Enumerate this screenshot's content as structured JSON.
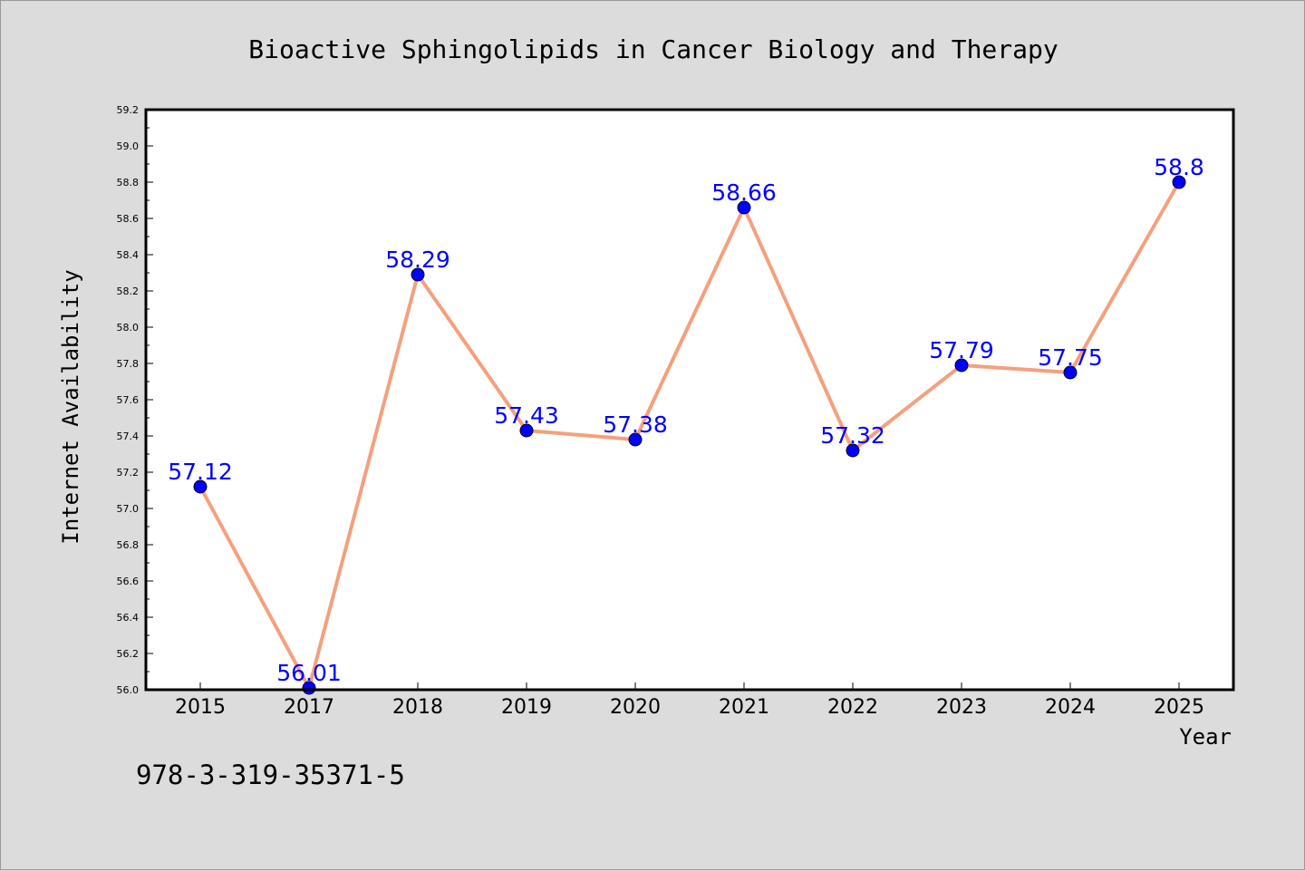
{
  "colors": {
    "background": "#dcdcdc",
    "plot_background": "#ffffff",
    "line": "#f4a07e",
    "marker": "#0000ff",
    "data_label": "#0000ff"
  },
  "chart_data": {
    "type": "line",
    "title": "Bioactive Sphingolipids in Cancer Biology and Therapy",
    "xlabel": "Year",
    "ylabel": "Internet Availability",
    "categories": [
      "2015",
      "2017",
      "2018",
      "2019",
      "2020",
      "2021",
      "2022",
      "2023",
      "2024",
      "2025"
    ],
    "series": [
      {
        "values": [
          57.12,
          56.01,
          58.29,
          57.43,
          57.38,
          58.66,
          57.32,
          57.79,
          57.75,
          58.8
        ]
      }
    ],
    "data_labels": [
      "57.12",
      "56.01",
      "58.29",
      "57.43",
      "57.38",
      "58.66",
      "57.32",
      "57.79",
      "57.75",
      "58.8"
    ],
    "ylim": [
      56.0,
      59.2
    ],
    "yticks": [
      "56.0",
      "56.2",
      "56.4",
      "56.6",
      "56.8",
      "57.0",
      "57.2",
      "57.4",
      "57.6",
      "57.8",
      "58.0",
      "58.2",
      "58.4",
      "58.6",
      "58.8",
      "59.0",
      "59.2"
    ],
    "grid": false,
    "legend": "none"
  },
  "footnote": "978-3-319-35371-5"
}
